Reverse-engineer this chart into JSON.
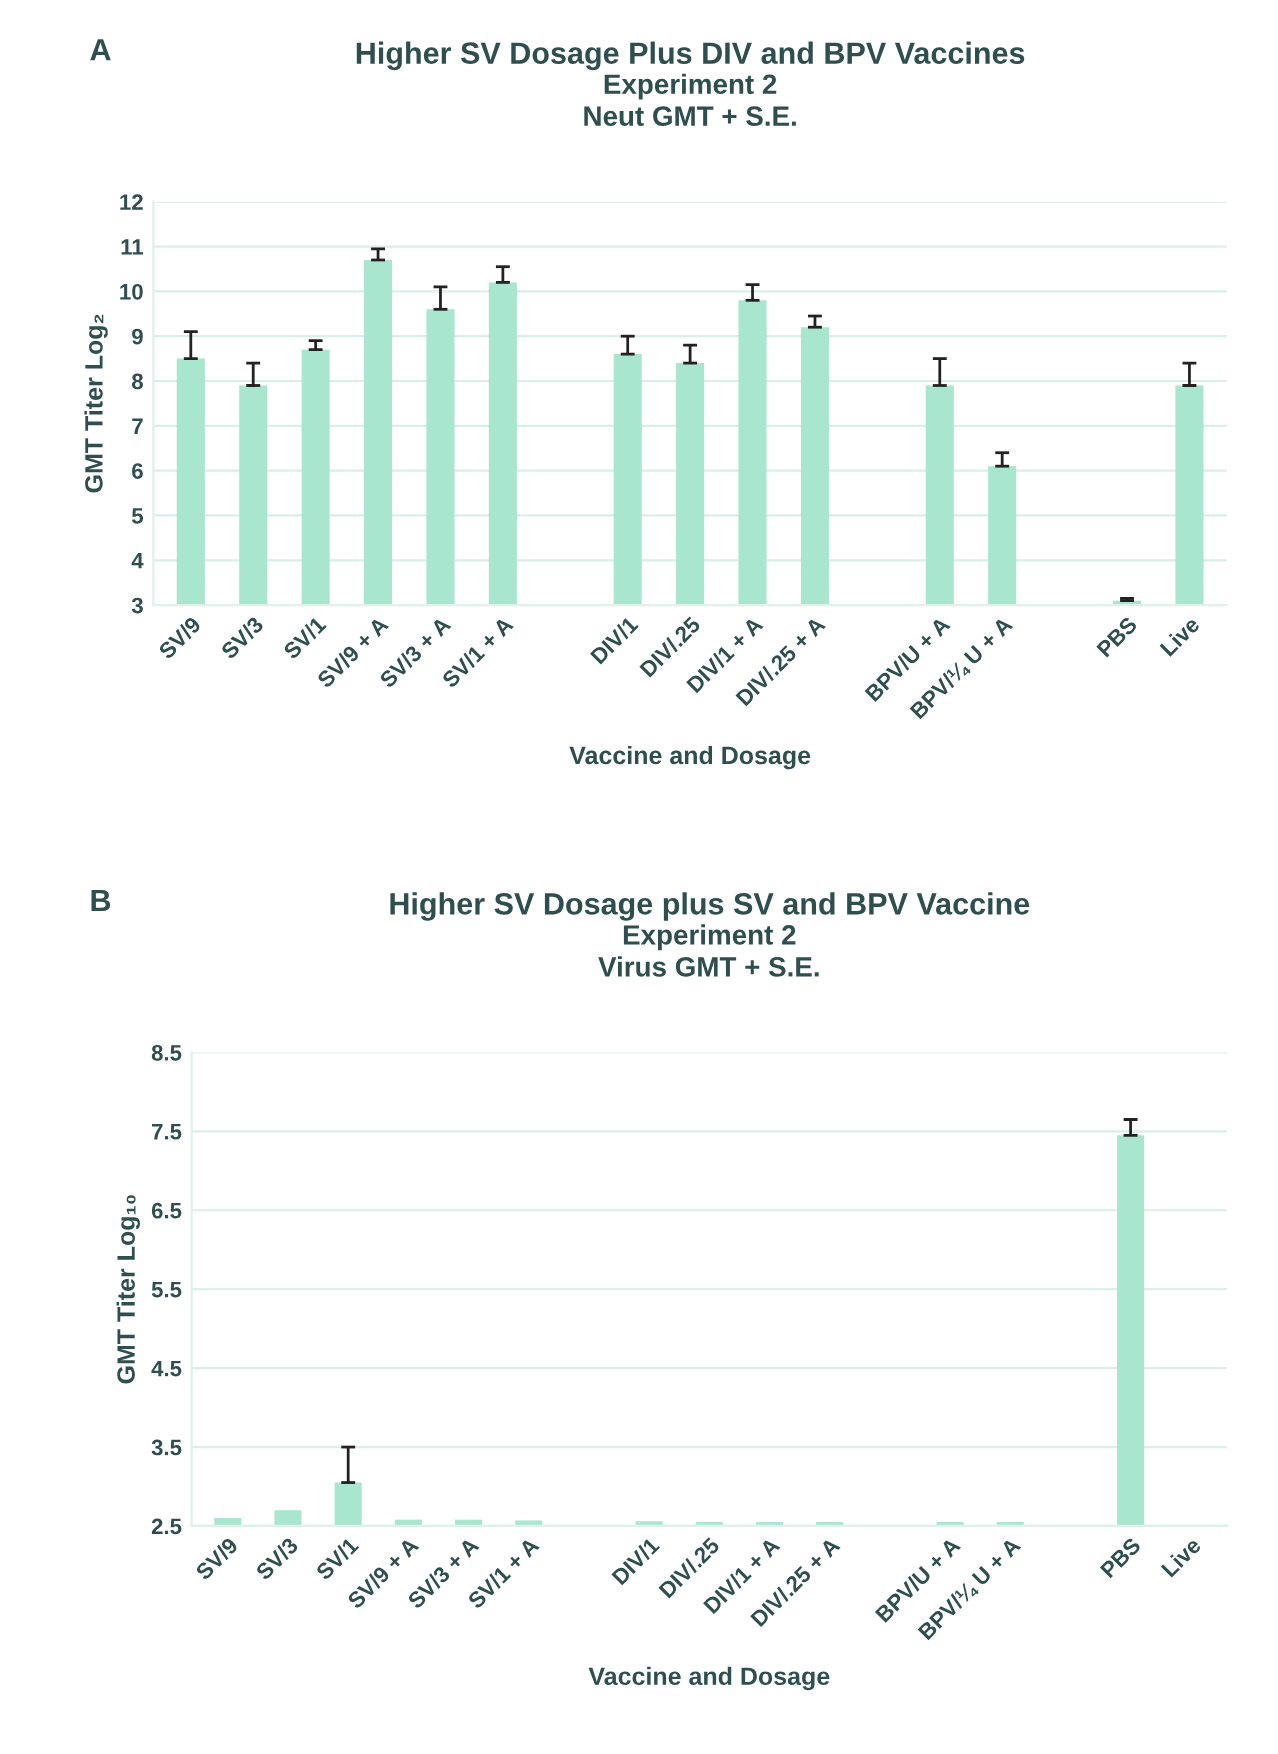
{
  "chart_data": [
    {
      "type": "bar",
      "title": "Higher SV Dosage Plus DIV and BPV Vaccines",
      "subtitle": "Experiment 2\nNeut GMT + S.E.",
      "annotations": [
        "A"
      ],
      "xlabel": "Vaccine and Dosage",
      "ylabel": "GMT Titer Log₂",
      "categories": [
        "SV/9",
        "SV/3",
        "SV/1",
        "SV/9 + A",
        "SV/3 + A",
        "SV/1 + A",
        null,
        "DIV/1",
        "DIV/.25",
        "DIV/1 + A",
        "DIV/.25 + A",
        null,
        "BPV/U + A",
        "BPV/¼ U + A",
        null,
        "PBS",
        "Live"
      ],
      "values": [
        8.5,
        7.9,
        8.7,
        10.7,
        9.6,
        10.2,
        null,
        8.6,
        8.4,
        9.8,
        9.2,
        null,
        7.9,
        6.1,
        null,
        3.1,
        7.9
      ],
      "errors": [
        0.6,
        0.5,
        0.2,
        0.25,
        0.5,
        0.35,
        null,
        0.4,
        0.4,
        0.35,
        0.25,
        null,
        0.6,
        0.3,
        null,
        0.05,
        0.5
      ],
      "color": "#a8e6cf",
      "ylim": [
        3,
        12
      ],
      "yticks": [
        3,
        4,
        5,
        6,
        7,
        8,
        9,
        10,
        11,
        12
      ],
      "grid": "y"
    },
    {
      "type": "bar",
      "title": "Higher SV Dosage plus SV and BPV Vaccine",
      "subtitle": "Experiment 2\nVirus GMT + S.E.",
      "annotations": [
        "B"
      ],
      "xlabel": "Vaccine and Dosage",
      "ylabel": "GMT Titer Log₁₀",
      "categories": [
        "SV/9",
        "SV/3",
        "SV/1",
        "SV/9 + A",
        "SV/3 + A",
        "SV/1 + A",
        null,
        "DIV/1",
        "DIV/.25",
        "DIV/1 + A",
        "DIV/.25 + A",
        null,
        "BPV/U + A",
        "BPV/¼ U + A",
        null,
        "PBS",
        "Live"
      ],
      "values": [
        2.6,
        2.7,
        3.05,
        2.58,
        2.58,
        2.57,
        null,
        2.56,
        2.55,
        2.55,
        2.55,
        null,
        2.55,
        2.55,
        null,
        7.45,
        2.5
      ],
      "errors": [
        null,
        null,
        0.45,
        null,
        null,
        null,
        null,
        null,
        null,
        null,
        null,
        null,
        null,
        null,
        null,
        0.2,
        null
      ],
      "color": "#a8e6cf",
      "ylim": [
        2.5,
        8.5
      ],
      "yticks": [
        2.5,
        3.5,
        4.5,
        5.5,
        6.5,
        7.5,
        8.5
      ],
      "grid": "y"
    }
  ]
}
